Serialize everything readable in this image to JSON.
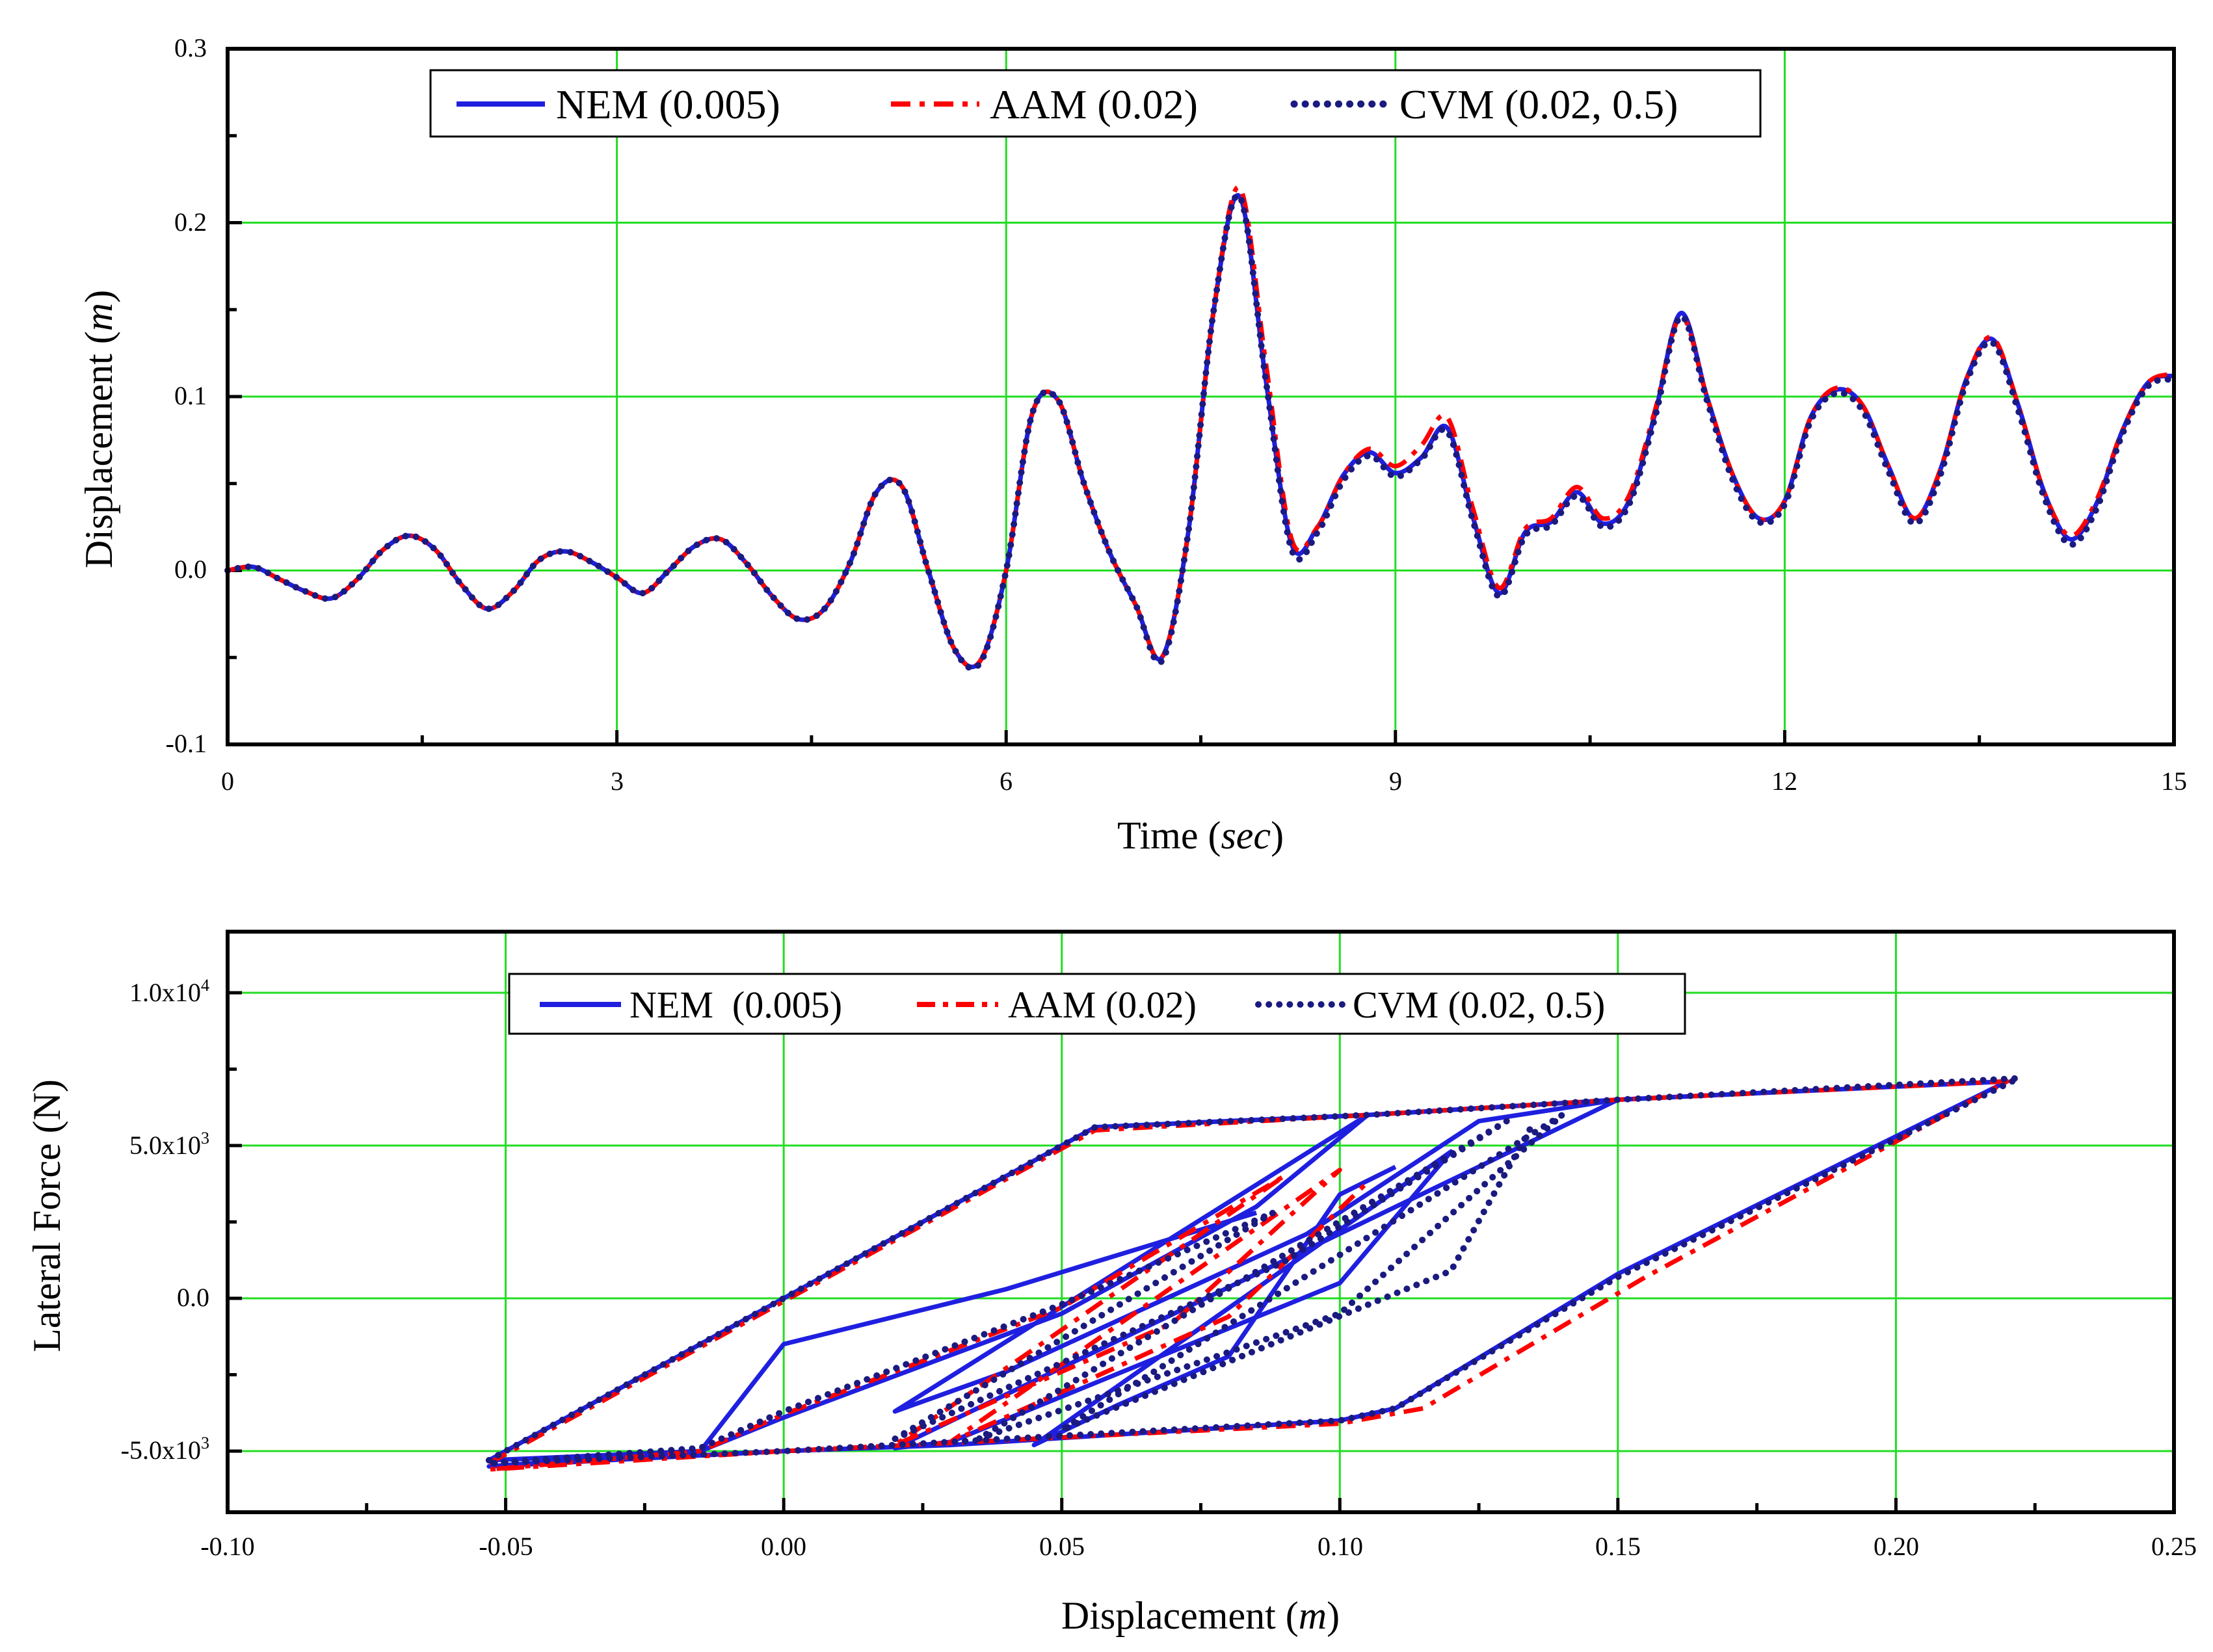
{
  "chart_data": [
    {
      "type": "line",
      "title": "",
      "xlabel": "Time",
      "xlabel_unit": "sec",
      "ylabel": "Displacement",
      "ylabel_unit": "m",
      "xlim": [
        0,
        15
      ],
      "ylim": [
        -0.1,
        0.3
      ],
      "xticks": [
        "0",
        "3",
        "6",
        "9",
        "12",
        "15"
      ],
      "yticks": [
        "-0.1",
        "0.0",
        "0.1",
        "0.2",
        "0.3"
      ],
      "grid": true,
      "legend_position": "top",
      "legend": [
        "NEM (0.005)",
        "AAM (0.02)",
        "CVM (0.02, 0.5)"
      ],
      "x": [
        0,
        0.2,
        0.4,
        0.6,
        0.8,
        1.0,
        1.2,
        1.4,
        1.6,
        1.8,
        2.0,
        2.2,
        2.4,
        2.6,
        2.8,
        3.0,
        3.2,
        3.4,
        3.6,
        3.8,
        4.0,
        4.2,
        4.4,
        4.6,
        4.8,
        5.0,
        5.2,
        5.4,
        5.6,
        5.8,
        6.0,
        6.2,
        6.4,
        6.6,
        6.8,
        7.0,
        7.2,
        7.4,
        7.6,
        7.8,
        8.0,
        8.2,
        8.4,
        8.6,
        8.8,
        9.0,
        9.2,
        9.4,
        9.6,
        9.8,
        10.0,
        10.2,
        10.4,
        10.6,
        10.8,
        11.0,
        11.2,
        11.4,
        11.6,
        11.8,
        12.0,
        12.2,
        12.4,
        12.6,
        12.8,
        13.0,
        13.2,
        13.4,
        13.6,
        13.8,
        14.0,
        14.2,
        14.4,
        14.6,
        14.8,
        15.0
      ],
      "series": [
        {
          "name": "NEM (0.005)",
          "color": "#1f1fe0",
          "style": "solid",
          "values": [
            0.0,
            0.002,
            -0.005,
            -0.012,
            -0.016,
            -0.005,
            0.012,
            0.02,
            0.012,
            -0.008,
            -0.022,
            -0.012,
            0.006,
            0.011,
            0.005,
            -0.004,
            -0.013,
            0.0,
            0.014,
            0.018,
            0.004,
            -0.015,
            -0.028,
            -0.022,
            0.005,
            0.045,
            0.048,
            0.0,
            -0.045,
            -0.052,
            0.0,
            0.09,
            0.098,
            0.05,
            0.01,
            -0.02,
            -0.05,
            0.02,
            0.15,
            0.215,
            0.11,
            0.015,
            0.025,
            0.055,
            0.068,
            0.056,
            0.065,
            0.082,
            0.03,
            -0.013,
            0.022,
            0.028,
            0.045,
            0.027,
            0.04,
            0.09,
            0.148,
            0.1,
            0.055,
            0.03,
            0.04,
            0.088,
            0.104,
            0.095,
            0.06,
            0.03,
            0.058,
            0.11,
            0.133,
            0.095,
            0.045,
            0.018,
            0.038,
            0.08,
            0.108,
            0.112
          ]
        },
        {
          "name": "AAM (0.02)",
          "color": "#ff0000",
          "style": "dashdot",
          "values": [
            0.0,
            0.002,
            -0.005,
            -0.012,
            -0.016,
            -0.005,
            0.012,
            0.02,
            0.012,
            -0.008,
            -0.022,
            -0.012,
            0.006,
            0.011,
            0.005,
            -0.004,
            -0.013,
            0.0,
            0.014,
            0.018,
            0.004,
            -0.015,
            -0.028,
            -0.022,
            0.005,
            0.045,
            0.048,
            0.0,
            -0.045,
            -0.052,
            0.0,
            0.09,
            0.098,
            0.05,
            0.01,
            -0.02,
            -0.05,
            0.02,
            0.15,
            0.22,
            0.12,
            0.018,
            0.025,
            0.055,
            0.07,
            0.06,
            0.072,
            0.088,
            0.035,
            -0.01,
            0.024,
            0.03,
            0.048,
            0.03,
            0.043,
            0.092,
            0.146,
            0.1,
            0.055,
            0.03,
            0.04,
            0.088,
            0.105,
            0.095,
            0.06,
            0.03,
            0.058,
            0.11,
            0.134,
            0.095,
            0.045,
            0.02,
            0.04,
            0.08,
            0.108,
            0.113
          ]
        },
        {
          "name": "CVM (0.02, 0.5)",
          "color": "#1a1a80",
          "style": "dotted",
          "values": [
            0.0,
            0.002,
            -0.005,
            -0.012,
            -0.016,
            -0.005,
            0.012,
            0.02,
            0.012,
            -0.008,
            -0.022,
            -0.012,
            0.006,
            0.011,
            0.005,
            -0.004,
            -0.013,
            0.0,
            0.014,
            0.018,
            0.004,
            -0.015,
            -0.028,
            -0.022,
            0.005,
            0.045,
            0.048,
            0.0,
            -0.045,
            -0.053,
            0.0,
            0.09,
            0.098,
            0.05,
            0.01,
            -0.02,
            -0.052,
            0.02,
            0.15,
            0.215,
            0.11,
            0.012,
            0.022,
            0.052,
            0.066,
            0.054,
            0.064,
            0.08,
            0.028,
            -0.015,
            0.02,
            0.026,
            0.043,
            0.025,
            0.038,
            0.088,
            0.146,
            0.098,
            0.052,
            0.028,
            0.038,
            0.086,
            0.102,
            0.092,
            0.057,
            0.027,
            0.055,
            0.108,
            0.131,
            0.092,
            0.042,
            0.015,
            0.035,
            0.078,
            0.106,
            0.11
          ]
        }
      ]
    },
    {
      "type": "line",
      "title": "",
      "xlabel": "Displacement",
      "xlabel_unit": "m",
      "ylabel": "Lateral Force (N)",
      "xlim": [
        -0.1,
        0.25
      ],
      "ylim": [
        -7000,
        12000
      ],
      "xticks": [
        "-0.10",
        "-0.05",
        "0.00",
        "0.05",
        "0.10",
        "0.15",
        "0.20",
        "0.25"
      ],
      "yticks": [
        {
          "mant": "-5.0x10",
          "exp": "3",
          "value": -5000
        },
        {
          "mant": "0.0",
          "exp": "",
          "value": 0
        },
        {
          "mant": "5.0x10",
          "exp": "3",
          "value": 5000
        },
        {
          "mant": "1.0x10",
          "exp": "4",
          "value": 10000
        }
      ],
      "grid": true,
      "legend_position": "top-left",
      "legend": [
        "NEM  (0.005)",
        "AAM (0.02)",
        "CVM (0.02, 0.5)"
      ],
      "series": [
        {
          "name": "NEM (0.005)",
          "color": "#1f1fe0",
          "style": "solid",
          "points": [
            [
              0.085,
              2800
            ],
            [
              0.04,
              300
            ],
            [
              0.0,
              -1500
            ],
            [
              -0.015,
              -5000
            ],
            [
              -0.053,
              -5300
            ],
            [
              0.056,
              5600
            ],
            [
              0.08,
              5800
            ],
            [
              0.105,
              6000
            ],
            [
              0.15,
              6500
            ],
            [
              0.22,
              7100
            ],
            [
              0.15,
              800
            ],
            [
              0.11,
              -3600
            ],
            [
              0.1,
              -4000
            ],
            [
              0.03,
              -4800
            ],
            [
              0.0,
              -5000
            ],
            [
              -0.053,
              -5500
            ],
            [
              -0.015,
              -5000
            ],
            [
              0.0,
              -3900
            ],
            [
              0.05,
              -500
            ],
            [
              0.085,
              3000
            ],
            [
              0.105,
              6000
            ],
            [
              0.02,
              -3700
            ],
            [
              0.04,
              -2400
            ],
            [
              0.094,
              2100
            ],
            [
              0.125,
              5800
            ],
            [
              0.15,
              6500
            ],
            [
              0.02,
              -4900
            ],
            [
              0.03,
              -4700
            ],
            [
              0.1,
              500
            ],
            [
              0.12,
              4800
            ],
            [
              0.045,
              -4800
            ],
            [
              0.06,
              -3500
            ],
            [
              0.08,
              -1900
            ],
            [
              0.1,
              3400
            ],
            [
              0.11,
              4300
            ]
          ]
        },
        {
          "name": "AAM (0.02)",
          "color": "#ff0000",
          "style": "dashdot",
          "points": [
            [
              -0.053,
              -5400
            ],
            [
              0.056,
              5500
            ],
            [
              0.105,
              6000
            ],
            [
              0.15,
              6500
            ],
            [
              0.22,
              7100
            ],
            [
              0.155,
              700
            ],
            [
              0.115,
              -3600
            ],
            [
              0.1,
              -4100
            ],
            [
              0.0,
              -5000
            ],
            [
              -0.053,
              -5600
            ],
            [
              -0.015,
              -5000
            ],
            [
              0.0,
              -3800
            ],
            [
              0.05,
              -300
            ],
            [
              0.09,
              4000
            ],
            [
              0.02,
              -4800
            ],
            [
              0.07,
              -800
            ],
            [
              0.1,
              4200
            ],
            [
              0.03,
              -4700
            ],
            [
              0.08,
              -600
            ],
            [
              0.105,
              3800
            ]
          ]
        },
        {
          "name": "CVM (0.02, 0.5)",
          "color": "#1a1a80",
          "style": "dotted",
          "points": [
            [
              -0.053,
              -5300
            ],
            [
              0.056,
              5600
            ],
            [
              0.105,
              6000
            ],
            [
              0.15,
              6500
            ],
            [
              0.222,
              7200
            ],
            [
              0.15,
              700
            ],
            [
              0.11,
              -3600
            ],
            [
              0.1,
              -4000
            ],
            [
              0.0,
              -5000
            ],
            [
              -0.053,
              -5400
            ],
            [
              -0.015,
              -4900
            ],
            [
              0.0,
              -3700
            ],
            [
              0.05,
              -200
            ],
            [
              0.088,
              2800
            ],
            [
              0.02,
              -4600
            ],
            [
              0.09,
              1200
            ],
            [
              0.13,
              5800
            ],
            [
              0.035,
              -4600
            ],
            [
              0.1,
              -500
            ],
            [
              0.14,
              6000
            ],
            [
              0.05,
              -4300
            ],
            [
              0.12,
              900
            ],
            [
              0.135,
              5800
            ]
          ]
        }
      ]
    }
  ]
}
